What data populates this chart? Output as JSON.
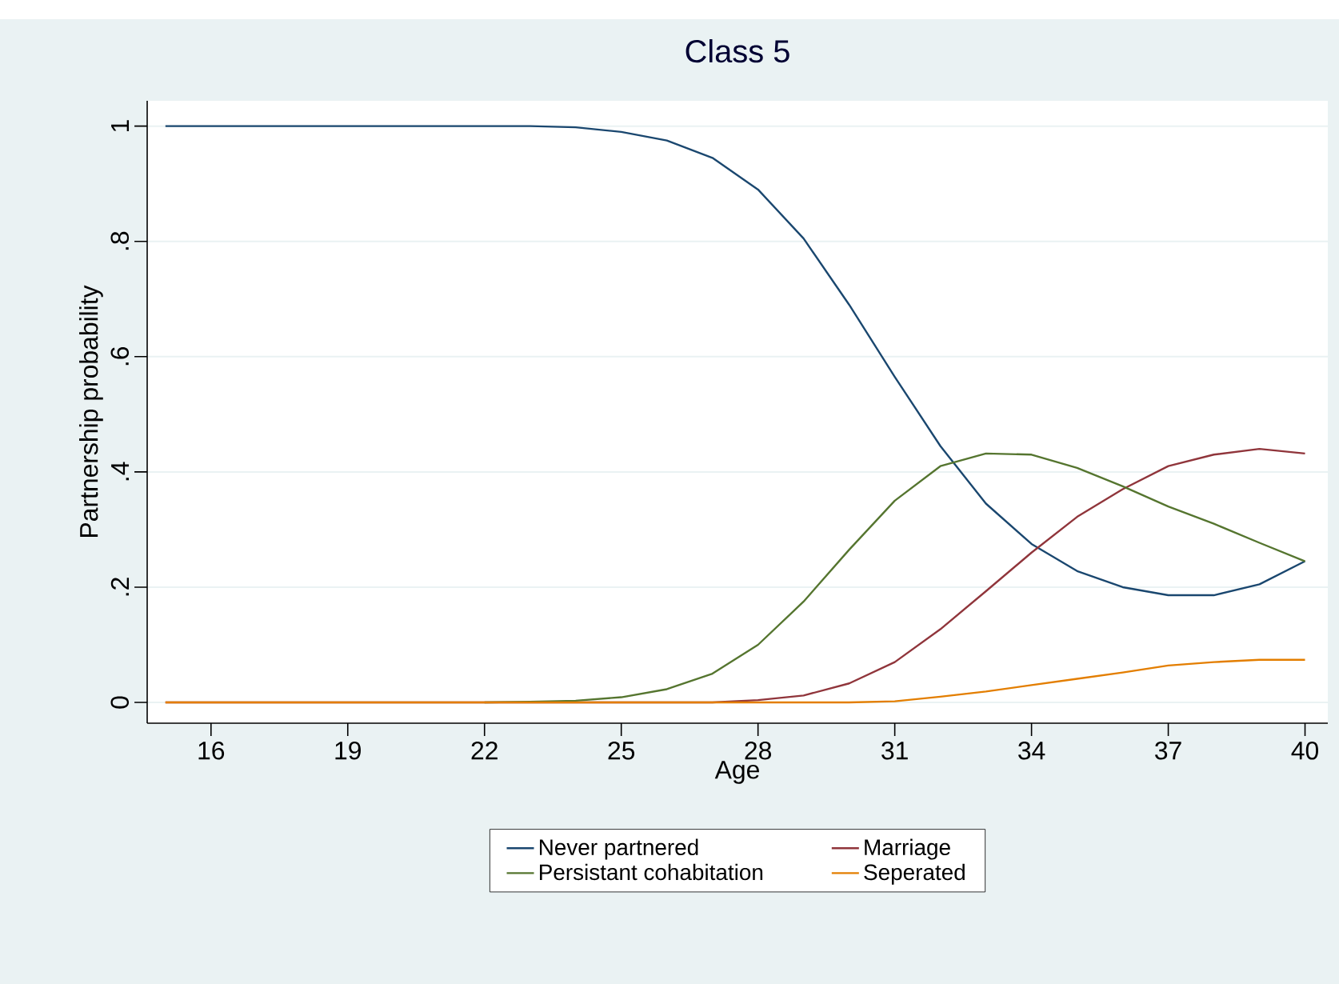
{
  "chart_data": {
    "type": "line",
    "title": "Class 5",
    "xlabel": "Age",
    "ylabel": "Partnership probability",
    "x": [
      15,
      16,
      17,
      18,
      19,
      20,
      21,
      22,
      23,
      24,
      25,
      26,
      27,
      28,
      29,
      30,
      31,
      32,
      33,
      34,
      35,
      36,
      37,
      38,
      39,
      40
    ],
    "series": [
      {
        "name": "Never partnered",
        "color": "#1a476f",
        "values": [
          1,
          1,
          1,
          1,
          1,
          1,
          1,
          1,
          1,
          0.998,
          0.99,
          0.975,
          0.945,
          0.89,
          0.805,
          0.69,
          0.565,
          0.445,
          0.345,
          0.275,
          0.228,
          0.2,
          0.186,
          0.186,
          0.205,
          0.245
        ]
      },
      {
        "name": "Marriage",
        "color": "#90353b",
        "values": [
          0,
          0,
          0,
          0,
          0,
          0,
          0,
          0,
          0,
          0,
          0,
          0,
          0,
          0.004,
          0.012,
          0.033,
          0.07,
          0.127,
          0.193,
          0.26,
          0.322,
          0.37,
          0.41,
          0.43,
          0.44,
          0.432
        ]
      },
      {
        "name": "Persistant cohabitation",
        "color": "#55752f",
        "values": [
          null,
          null,
          null,
          null,
          null,
          null,
          null,
          0,
          0.001,
          0.003,
          0.009,
          0.023,
          0.05,
          0.1,
          0.175,
          0.265,
          0.35,
          0.41,
          0.432,
          0.43,
          0.407,
          0.375,
          0.34,
          0.31,
          0.277,
          0.245
        ]
      },
      {
        "name": "Seperated",
        "color": "#e37e00",
        "values": [
          0,
          0,
          0,
          0,
          0,
          0,
          0,
          0,
          0,
          0,
          0,
          0,
          0,
          0,
          0,
          0,
          0.002,
          0.01,
          0.019,
          0.03,
          0.041,
          0.052,
          0.064,
          0.07,
          0.074,
          0.074
        ]
      }
    ],
    "xlim": [
      14.6,
      40.5
    ],
    "ylim": [
      -0.036,
      1.044
    ],
    "xticks": [
      16,
      19,
      22,
      25,
      28,
      31,
      34,
      37,
      40
    ],
    "yticks": [
      0,
      {
        "value": 0.2,
        "label": ".2"
      },
      {
        "value": 0.4,
        "label": ".4"
      },
      {
        "value": 0.6,
        "label": ".6"
      },
      {
        "value": 0.8,
        "label": ".8"
      },
      1
    ],
    "grid": "y",
    "legend": "bottom",
    "marker": "none",
    "line_style": "solid"
  }
}
